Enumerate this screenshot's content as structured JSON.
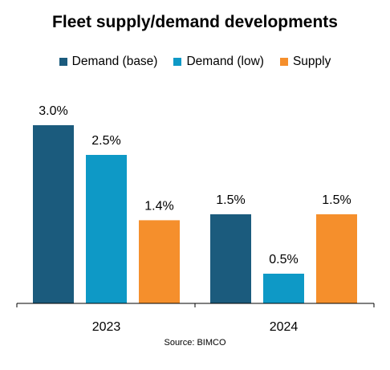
{
  "chart_data": {
    "type": "bar",
    "title": "Fleet supply/demand developments",
    "categories": [
      "2023",
      "2024"
    ],
    "series": [
      {
        "name": "Demand (base)",
        "color": "#1B5B7D",
        "values": [
          3.0,
          1.5
        ],
        "labels": [
          "3.0%",
          "1.5%"
        ]
      },
      {
        "name": "Demand (low)",
        "color": "#0E99C6",
        "values": [
          2.5,
          0.5
        ],
        "labels": [
          "2.5%",
          "0.5%"
        ]
      },
      {
        "name": "Supply",
        "color": "#F58F2C",
        "values": [
          1.4,
          1.5
        ],
        "labels": [
          "1.4%",
          "1.5%"
        ]
      }
    ],
    "ylim": [
      0,
      3.0
    ],
    "xlabel": "",
    "ylabel": "",
    "grid": false,
    "legend_position": "top",
    "source": "Source: BIMCO"
  }
}
